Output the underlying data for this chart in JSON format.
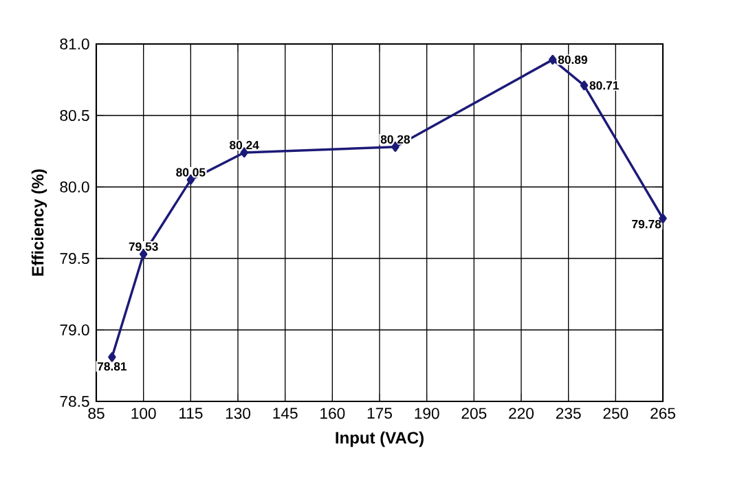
{
  "chart_data": {
    "type": "line",
    "xlabel": "Input (VAC)",
    "ylabel": "Efficiency (%)",
    "x": [
      90,
      100,
      115,
      132,
      180,
      230,
      240,
      265
    ],
    "values": [
      78.81,
      79.53,
      80.05,
      80.24,
      80.28,
      80.89,
      80.71,
      79.78
    ],
    "color": "#1c1a78",
    "marker": "diamond",
    "data_labels": true,
    "grid": true,
    "xlim": [
      85,
      265
    ],
    "xticks": [
      85,
      100,
      115,
      130,
      145,
      160,
      175,
      190,
      205,
      220,
      235,
      250,
      265
    ],
    "ylim": [
      78.5,
      81.0
    ],
    "yticks": [
      {
        "value": 78.5,
        "label": "78.5"
      },
      {
        "value": 79.0,
        "label": "79.0"
      },
      {
        "value": 79.5,
        "label": "79.5"
      },
      {
        "value": 80.0,
        "label": "80.0"
      },
      {
        "value": 80.5,
        "label": "80.5"
      },
      {
        "value": 81.0,
        "label": "81.0"
      }
    ]
  }
}
